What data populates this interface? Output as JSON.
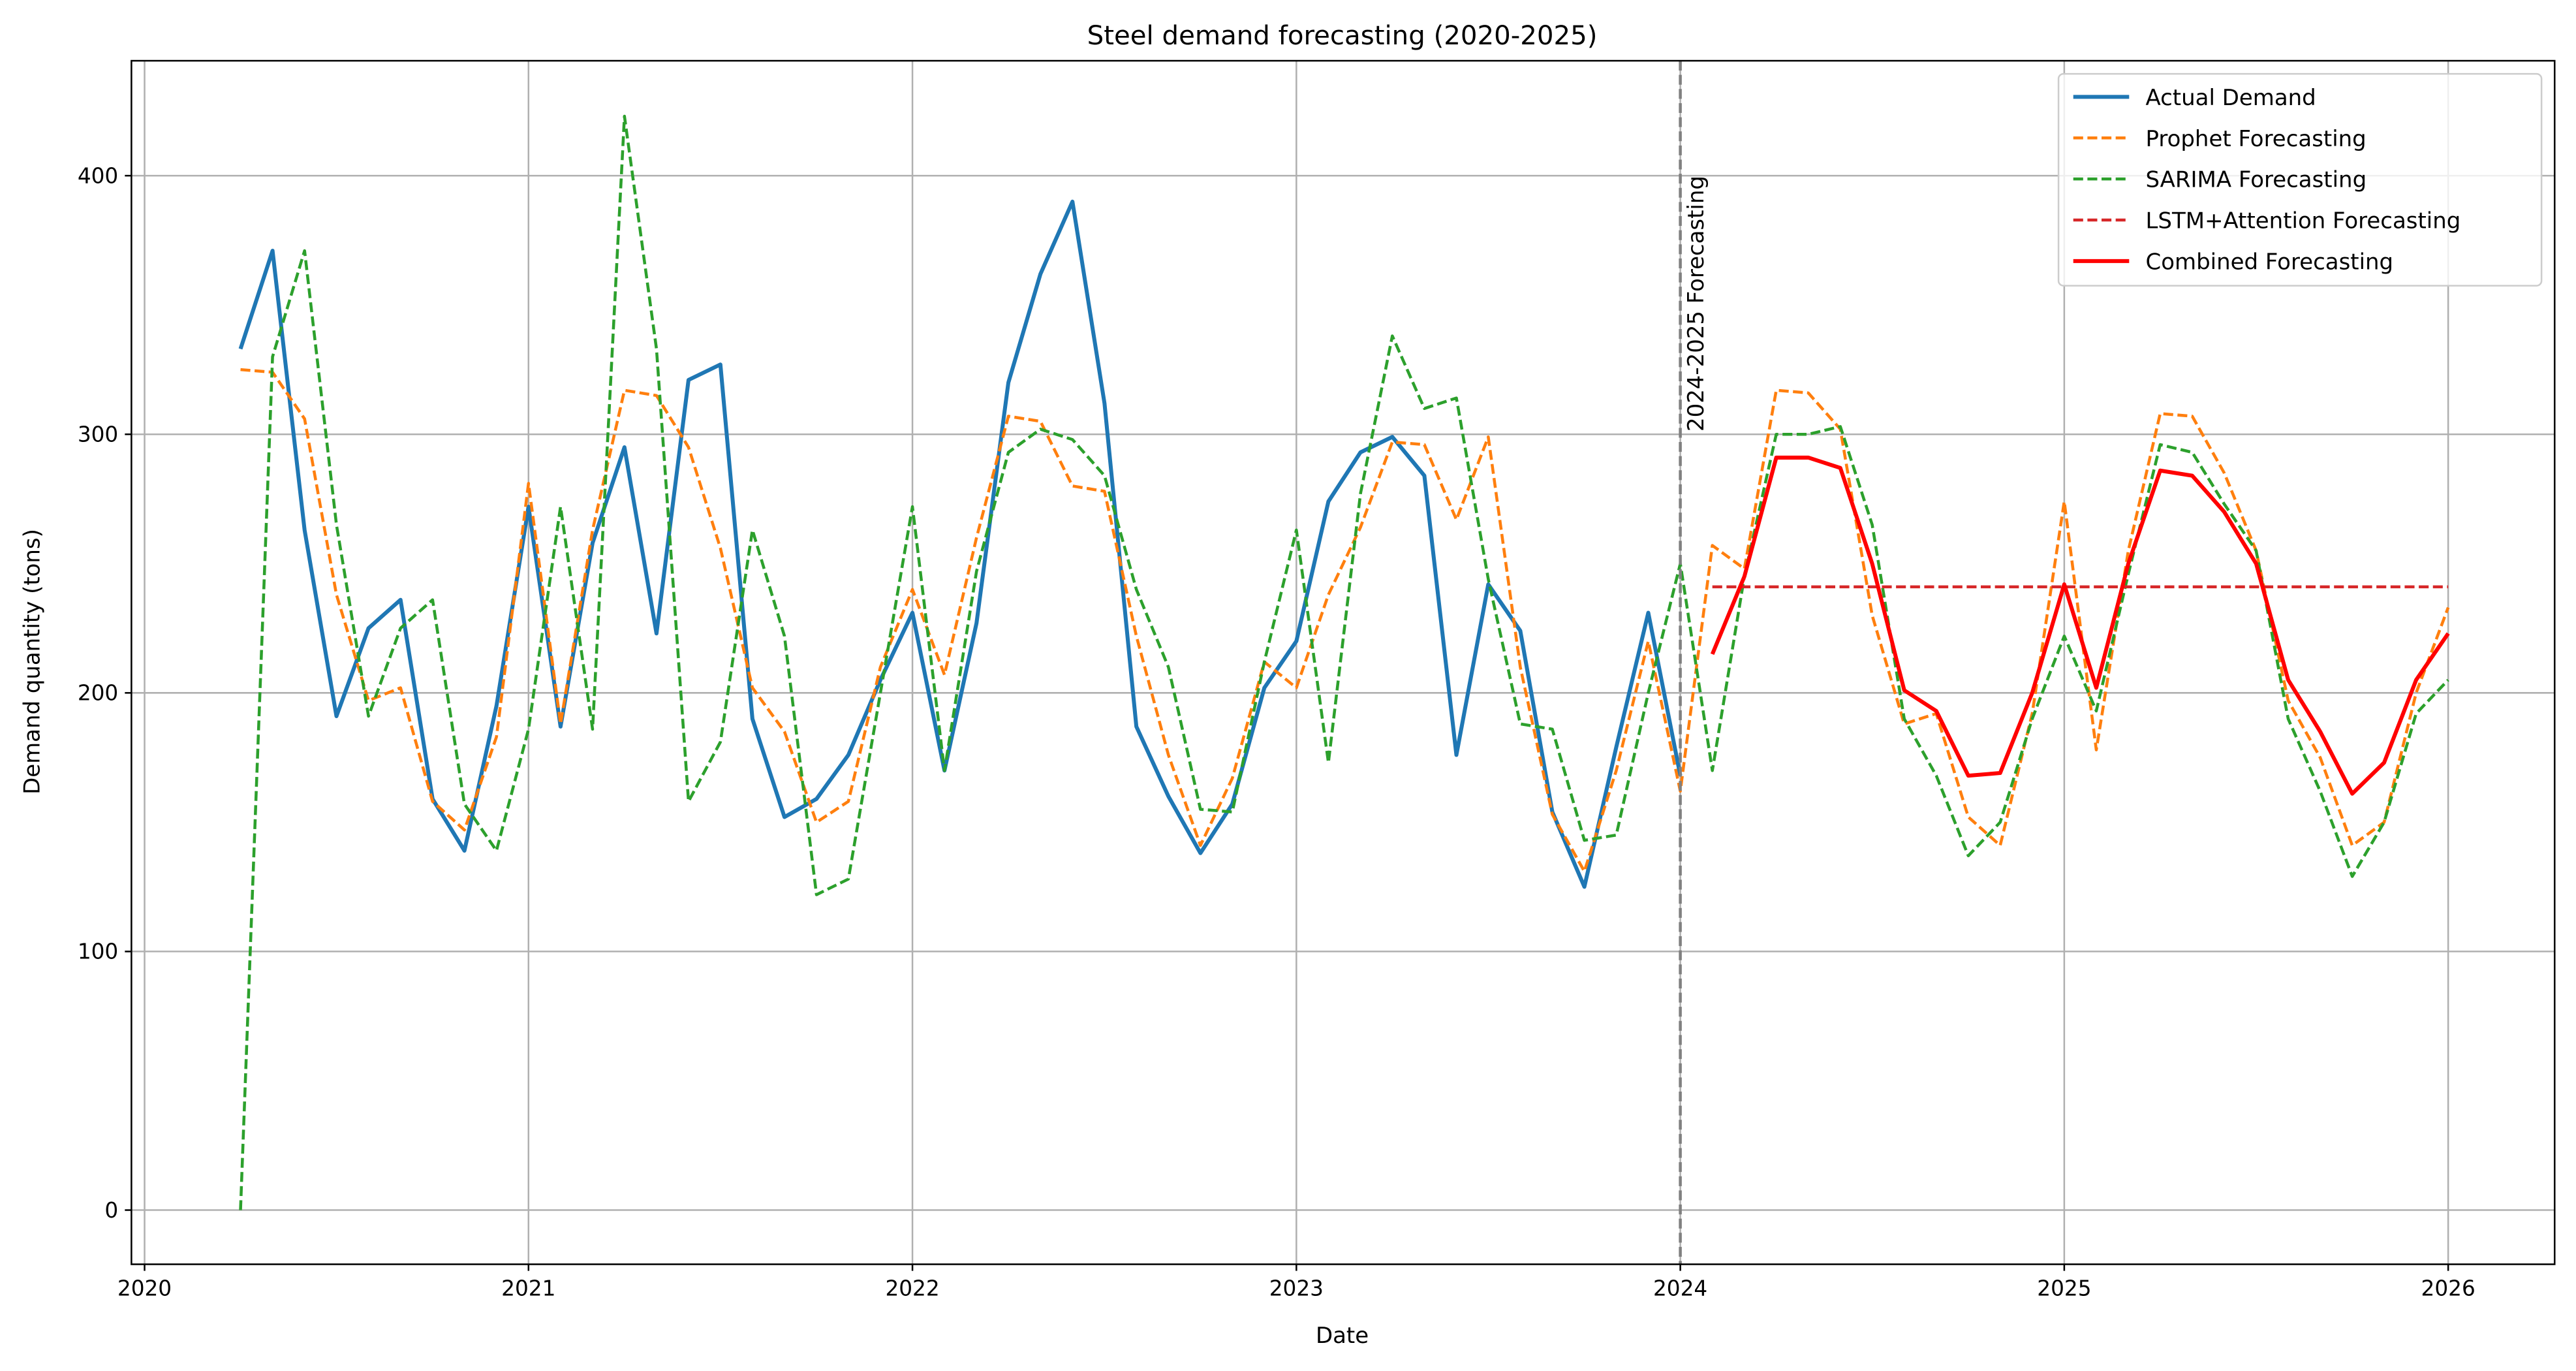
{
  "chart_data": {
    "type": "line",
    "title": "Steel demand forecasting (2020-2025)",
    "xlabel": "Date",
    "ylabel": "Demand quantity (tons)",
    "xlim": [
      "2019-12",
      "2026-04"
    ],
    "ylim": [
      -20,
      445
    ],
    "xticks": [
      "2020",
      "2021",
      "2022",
      "2023",
      "2024",
      "2025",
      "2026"
    ],
    "yticks": [
      0,
      100,
      200,
      300,
      400
    ],
    "grid": true,
    "legend_position": "top-right",
    "annotation": {
      "text": "2024-2025 Forecasting",
      "x": "2024-01",
      "color": "#808080",
      "style": "dashed vertical line"
    },
    "x": [
      "2020-04",
      "2020-05",
      "2020-06",
      "2020-07",
      "2020-08",
      "2020-09",
      "2020-10",
      "2020-11",
      "2020-12",
      "2021-01",
      "2021-02",
      "2021-03",
      "2021-04",
      "2021-05",
      "2021-06",
      "2021-07",
      "2021-08",
      "2021-09",
      "2021-10",
      "2021-11",
      "2021-12",
      "2022-01",
      "2022-02",
      "2022-03",
      "2022-04",
      "2022-05",
      "2022-06",
      "2022-07",
      "2022-08",
      "2022-09",
      "2022-10",
      "2022-11",
      "2022-12",
      "2023-01",
      "2023-02",
      "2023-03",
      "2023-04",
      "2023-05",
      "2023-06",
      "2023-07",
      "2023-08",
      "2023-09",
      "2023-10",
      "2023-11",
      "2023-12",
      "2024-01",
      "2024-02",
      "2024-03",
      "2024-04",
      "2024-05",
      "2024-06",
      "2024-07",
      "2024-08",
      "2024-09",
      "2024-10",
      "2024-11",
      "2024-12",
      "2025-01",
      "2025-02",
      "2025-03",
      "2025-04",
      "2025-05",
      "2025-06",
      "2025-07",
      "2025-08",
      "2025-09",
      "2025-10",
      "2025-11",
      "2025-12",
      "2026-01"
    ],
    "series": [
      {
        "name": "Actual Demand",
        "color": "#1f77b4",
        "style": "solid",
        "values": [
          333,
          371,
          263,
          191,
          225,
          236,
          159,
          139,
          195,
          272,
          187,
          258,
          295,
          223,
          321,
          327,
          190,
          152,
          159,
          176,
          205,
          231,
          170,
          227,
          320,
          362,
          390,
          312,
          187,
          160,
          138,
          157,
          202,
          220,
          274,
          293,
          299,
          284,
          176,
          242,
          224,
          154,
          125,
          179,
          231,
          168,
          null,
          null,
          null,
          null,
          null,
          null,
          null,
          null,
          null,
          null,
          null,
          null,
          null,
          null,
          null,
          null,
          null,
          null,
          null,
          null,
          null,
          null,
          null,
          null
        ]
      },
      {
        "name": "Prophet Forecasting",
        "color": "#ff7f0e",
        "style": "dashed",
        "values": [
          325,
          324,
          306,
          238,
          197,
          202,
          158,
          147,
          183,
          281,
          188,
          263,
          317,
          315,
          295,
          256,
          202,
          185,
          150,
          158,
          210,
          240,
          207,
          260,
          307,
          305,
          280,
          278,
          222,
          176,
          141,
          167,
          212,
          202,
          238,
          264,
          297,
          296,
          267,
          299,
          210,
          153,
          131,
          170,
          220,
          162,
          257,
          248,
          317,
          316,
          302,
          230,
          188,
          192,
          152,
          141,
          192,
          274,
          178,
          255,
          308,
          307,
          285,
          255,
          197,
          175,
          141,
          150,
          200,
          233
        ]
      },
      {
        "name": "SARIMA Forecasting",
        "color": "#2ca02c",
        "style": "dashed",
        "values": [
          0,
          330,
          371,
          265,
          191,
          225,
          236,
          157,
          139,
          186,
          272,
          186,
          423,
          333,
          158,
          181,
          263,
          222,
          122,
          128,
          200,
          272,
          170,
          247,
          293,
          302,
          298,
          284,
          240,
          210,
          155,
          154,
          212,
          263,
          173,
          277,
          338,
          310,
          314,
          244,
          188,
          186,
          143,
          145,
          200,
          250,
          170,
          245,
          300,
          300,
          303,
          265,
          190,
          168,
          137,
          150,
          190,
          222,
          193,
          246,
          296,
          293,
          273,
          255,
          190,
          162,
          129,
          150,
          192,
          205
        ]
      },
      {
        "name": "LSTM+Attention Forecasting",
        "color": "#d62728",
        "style": "dashed",
        "values": [
          null,
          null,
          null,
          null,
          null,
          null,
          null,
          null,
          null,
          null,
          null,
          null,
          null,
          null,
          null,
          null,
          null,
          null,
          null,
          null,
          null,
          null,
          null,
          null,
          null,
          null,
          null,
          null,
          null,
          null,
          null,
          null,
          null,
          null,
          null,
          null,
          null,
          null,
          null,
          null,
          null,
          null,
          null,
          null,
          null,
          null,
          241,
          241,
          241,
          241,
          241,
          241,
          241,
          241,
          241,
          241,
          241,
          241,
          241,
          241,
          241,
          241,
          241,
          241,
          241,
          241,
          241,
          241,
          241,
          241
        ]
      },
      {
        "name": "Combined Forecasting",
        "color": "#ff0000",
        "style": "solid",
        "values": [
          null,
          null,
          null,
          null,
          null,
          null,
          null,
          null,
          null,
          null,
          null,
          null,
          null,
          null,
          null,
          null,
          null,
          null,
          null,
          null,
          null,
          null,
          null,
          null,
          null,
          null,
          null,
          null,
          null,
          null,
          null,
          null,
          null,
          null,
          null,
          null,
          null,
          null,
          null,
          null,
          null,
          null,
          null,
          null,
          null,
          null,
          215,
          245,
          291,
          291,
          287,
          250,
          201,
          193,
          168,
          169,
          200,
          242,
          202,
          250,
          286,
          284,
          270,
          250,
          205,
          185,
          161,
          173,
          205,
          223
        ]
      }
    ]
  }
}
